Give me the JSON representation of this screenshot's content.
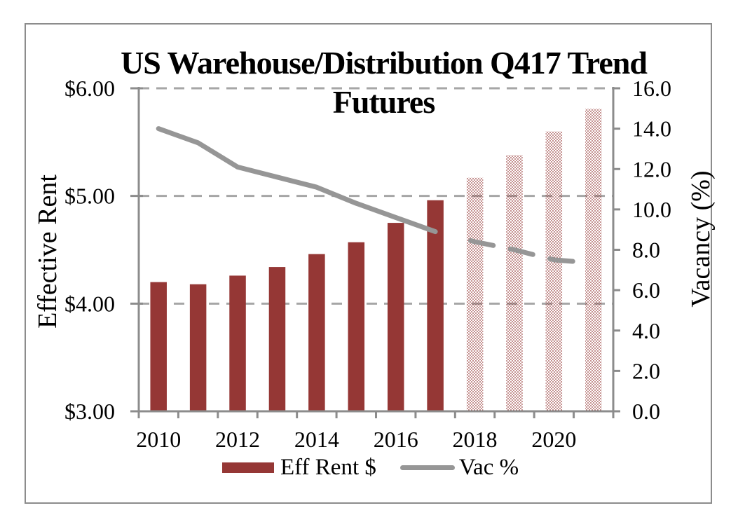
{
  "title": {
    "line1": "US Warehouse/Distribution Q417 Trend",
    "line2": "Futures"
  },
  "left_axis": {
    "title": "Effective Rent",
    "tick_labels": [
      "$3.00",
      "$4.00",
      "$5.00",
      "$6.00"
    ],
    "min": 3,
    "max": 6,
    "tick_step": 1
  },
  "right_axis": {
    "title": "Vacancy (%)",
    "tick_labels": [
      "0.0",
      "2.0",
      "4.0",
      "6.0",
      "8.0",
      "10.0",
      "12.0",
      "14.0",
      "16.0"
    ],
    "min": 0,
    "max": 16,
    "tick_step": 2
  },
  "x_axis": {
    "visible_year_labels": [
      "2010",
      "2012",
      "2014",
      "2016",
      "2018",
      "2020"
    ]
  },
  "legend": {
    "items": [
      {
        "label": "Eff Rent $",
        "swatch": "bar-swatch"
      },
      {
        "label": "Vac %",
        "swatch": "line-swatch"
      }
    ]
  },
  "colors": {
    "bar": "#953735",
    "line": "#969696",
    "gridline": "#A6A6A6",
    "axis": "#8C8C8C",
    "frame_border": "#8C8C8C",
    "text": "#000000"
  },
  "chart_data": {
    "type": "bar+line",
    "title": "US Warehouse/Distribution Q417 Trend Futures",
    "categories": [
      2010,
      2011,
      2012,
      2013,
      2014,
      2015,
      2016,
      2017,
      2018,
      2019,
      2020,
      2021
    ],
    "series": [
      {
        "name": "Eff Rent $",
        "type": "bar",
        "axis": "left",
        "values": [
          4.2,
          4.18,
          4.26,
          4.34,
          4.46,
          4.57,
          4.75,
          4.96,
          5.17,
          5.38,
          5.6,
          5.81
        ]
      },
      {
        "name": "Vac %",
        "type": "line",
        "axis": "right",
        "values": [
          14.0,
          13.3,
          12.1,
          11.6,
          11.1,
          10.3,
          9.6,
          8.9,
          8.4,
          8.0,
          7.5,
          null
        ]
      }
    ],
    "forecast_from_category": 2018,
    "forecast_style": {
      "bar": "dotted-pattern",
      "line": "dashed"
    },
    "left_ylabel": "Effective Rent",
    "right_ylabel": "Vacancy (%)",
    "left_ylim": [
      3,
      6
    ],
    "right_ylim": [
      0,
      16
    ],
    "grid": "horizontal-dashed",
    "legend_position": "bottom"
  }
}
